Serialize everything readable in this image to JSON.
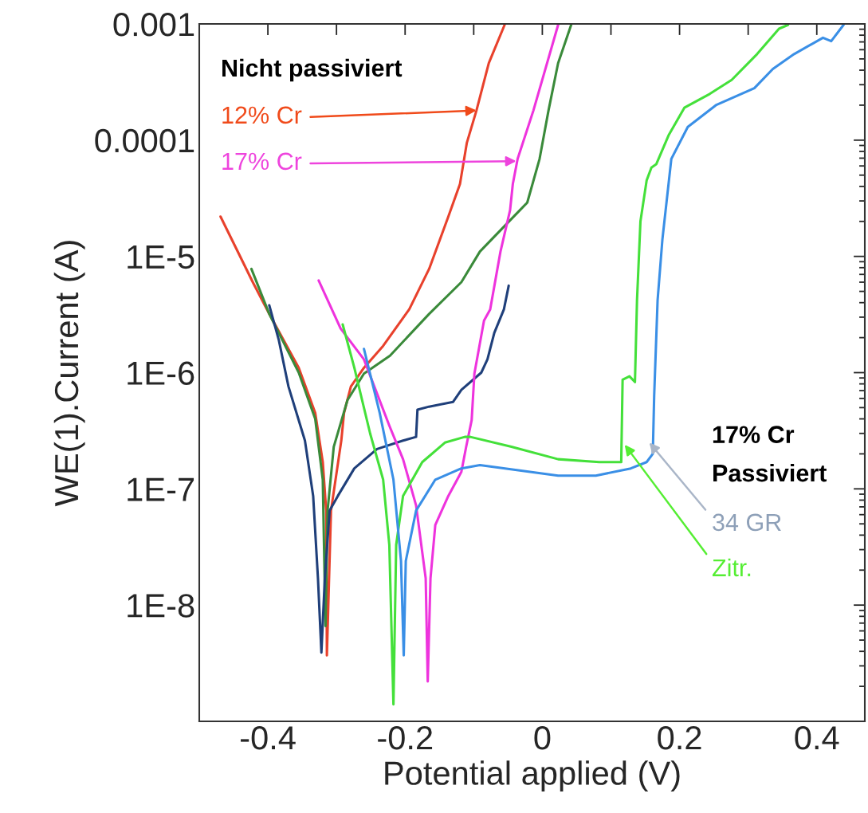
{
  "chart_data": {
    "type": "line",
    "xlabel": "Potential applied (V)",
    "ylabel": "WE(1).Current (A)",
    "xlim": [
      -0.5,
      0.47
    ],
    "ylim": [
      1e-09,
      0.001
    ],
    "log": "y",
    "grid": false,
    "legend": false,
    "marker": "none",
    "line_style": "solid",
    "xticks": [
      -0.4,
      {
        "value": -0.3,
        "label": null
      },
      -0.2,
      {
        "value": -0.1,
        "label": null
      },
      0,
      {
        "value": 0.1,
        "label": null
      },
      0.2,
      {
        "value": 0.3,
        "label": null
      },
      0.4
    ],
    "yticks": [
      {
        "value": 1e-08,
        "label": "1E-8"
      },
      {
        "value": 1e-07,
        "label": "1E-7"
      },
      {
        "value": 1e-06,
        "label": "1E-6"
      },
      {
        "value": 1e-05,
        "label": "1E-5"
      },
      {
        "value": 0.0001,
        "label": "0.0001"
      },
      {
        "value": 0.001,
        "label": "0.001"
      }
    ],
    "series": [
      {
        "color": "#e8412c",
        "x": [
          -0.469,
          -0.422,
          -0.398,
          -0.355,
          -0.331,
          -0.32,
          -0.315,
          -0.314,
          -0.308,
          -0.293,
          -0.289,
          -0.279,
          -0.26,
          -0.232,
          -0.194,
          -0.165,
          -0.137,
          -0.12,
          -0.11,
          -0.096,
          -0.078,
          -0.055
        ],
        "values": [
          2.2e-05,
          6e-06,
          3.2e-06,
          1.1e-06,
          4.5e-07,
          1.7e-07,
          6.5e-08,
          3.7e-09,
          6.5e-08,
          2.6e-07,
          4.5e-07,
          7.6e-07,
          1.1e-06,
          1.7e-06,
          3.5e-06,
          7.8e-06,
          2.2e-05,
          4.2e-05,
          9.5e-05,
          0.00018,
          0.00046,
          0.00098
        ]
      },
      {
        "color": "#3a8a3a",
        "x": [
          -0.424,
          -0.398,
          -0.355,
          -0.331,
          -0.32,
          -0.316,
          -0.313,
          -0.304,
          -0.284,
          -0.26,
          -0.222,
          -0.165,
          -0.118,
          -0.091,
          -0.045,
          -0.022,
          -0.004,
          0.009,
          0.023,
          0.042
        ],
        "values": [
          7.8e-06,
          3.2e-06,
          1e-06,
          4e-07,
          1.2e-07,
          6.6e-09,
          6.5e-08,
          2.3e-07,
          5.8e-07,
          9.8e-07,
          1.4e-06,
          3.2e-06,
          6e-06,
          1.1e-05,
          2.1e-05,
          2.9e-05,
          6.9e-05,
          0.00018,
          0.00046,
          0.00098
        ]
      },
      {
        "color": "#1f3f7a",
        "x": [
          -0.398,
          -0.384,
          -0.37,
          -0.346,
          -0.334,
          -0.327,
          -0.322,
          -0.317,
          -0.31,
          -0.298,
          -0.274,
          -0.241,
          -0.203,
          -0.184,
          -0.182,
          -0.165,
          -0.13,
          -0.118,
          -0.089,
          -0.08,
          -0.07,
          -0.056,
          -0.049
        ],
        "values": [
          3.8e-06,
          1.9e-06,
          7.6e-07,
          2.6e-07,
          8.7e-08,
          1.7e-08,
          3.9e-09,
          1.7e-08,
          6.5e-08,
          8.7e-08,
          1.5e-07,
          2.2e-07,
          2.6e-07,
          2.8e-07,
          4.8e-07,
          5.1e-07,
          5.6e-07,
          7.1e-07,
          1e-06,
          1.3e-06,
          2.2e-06,
          3.5e-06,
          5.6e-06
        ]
      },
      {
        "color": "#ee33dd",
        "x": [
          -0.326,
          -0.294,
          -0.26,
          -0.223,
          -0.203,
          -0.184,
          -0.17,
          -0.167,
          -0.163,
          -0.156,
          -0.137,
          -0.118,
          -0.111,
          -0.103,
          -0.099,
          -0.085,
          -0.076,
          -0.061,
          -0.047,
          -0.043,
          -0.036,
          -0.013,
          0.023
        ],
        "values": [
          6.2e-06,
          2.4e-06,
          1.3e-06,
          3.5e-07,
          1.8e-07,
          7.2e-08,
          1.7e-08,
          2.2e-09,
          1.7e-08,
          4.9e-08,
          8.7e-08,
          1.4e-07,
          2.3e-07,
          3.9e-07,
          9.8e-07,
          2.8e-06,
          3.5e-06,
          1.1e-05,
          2.5e-05,
          4.2e-05,
          6.9e-05,
          0.00018,
          0.00098
        ]
      },
      {
        "color": "#44e03a",
        "x": [
          -0.291,
          -0.274,
          -0.251,
          -0.232,
          -0.223,
          -0.217,
          -0.213,
          -0.203,
          -0.175,
          -0.142,
          -0.113,
          -0.105,
          -0.045,
          0.023,
          0.083,
          0.115,
          0.117,
          0.127,
          0.135,
          0.138,
          0.143,
          0.152,
          0.159,
          0.166,
          0.184,
          0.207,
          0.244,
          0.276,
          0.313,
          0.345,
          0.358
        ],
        "values": [
          2.6e-06,
          1.1e-06,
          3e-07,
          1.2e-07,
          3.3e-08,
          1.4e-09,
          3.3e-08,
          8.7e-08,
          1.7e-07,
          2.5e-07,
          2.8e-07,
          2.8e-07,
          2.3e-07,
          1.8e-07,
          1.7e-07,
          1.7e-07,
          8.7e-07,
          9.3e-07,
          8.3e-07,
          4.2e-06,
          2e-05,
          4.5e-05,
          5.8e-05,
          6.2e-05,
          0.00011,
          0.00019,
          0.00025,
          0.00033,
          0.00055,
          0.00091,
          0.00098
        ]
      },
      {
        "color": "#3a8fe6",
        "x": [
          -0.26,
          -0.237,
          -0.217,
          -0.206,
          -0.202,
          -0.199,
          -0.184,
          -0.156,
          -0.118,
          -0.091,
          0.023,
          0.078,
          0.129,
          0.152,
          0.161,
          0.163,
          0.168,
          0.175,
          0.188,
          0.212,
          0.253,
          0.309,
          0.336,
          0.367,
          0.409,
          0.421,
          0.439
        ],
        "values": [
          1.6e-06,
          4.5e-07,
          1.2e-07,
          2.4e-08,
          3.7e-09,
          2.4e-08,
          6.5e-08,
          1.2e-07,
          1.5e-07,
          1.6e-07,
          1.3e-07,
          1.3e-07,
          1.5e-07,
          1.7e-07,
          2e-07,
          6.3e-07,
          4.2e-06,
          1.4e-05,
          6.9e-05,
          0.00013,
          0.0002,
          0.00028,
          0.00041,
          0.00055,
          0.00076,
          0.00071,
          0.00098
        ]
      }
    ],
    "annotations": [
      "Nicht passiviert",
      {
        "text": "12% Cr",
        "x": -0.096,
        "y": 0.00018
      },
      {
        "text": "17% Cr",
        "x": -0.038,
        "y": 6.6e-05
      },
      "17% Cr\nPassiviert",
      {
        "text": "34 GR",
        "x": 0.156,
        "y": 2.5e-07
      },
      {
        "text": "Zitr.",
        "x": 0.12,
        "y": 2.4e-07
      }
    ]
  }
}
